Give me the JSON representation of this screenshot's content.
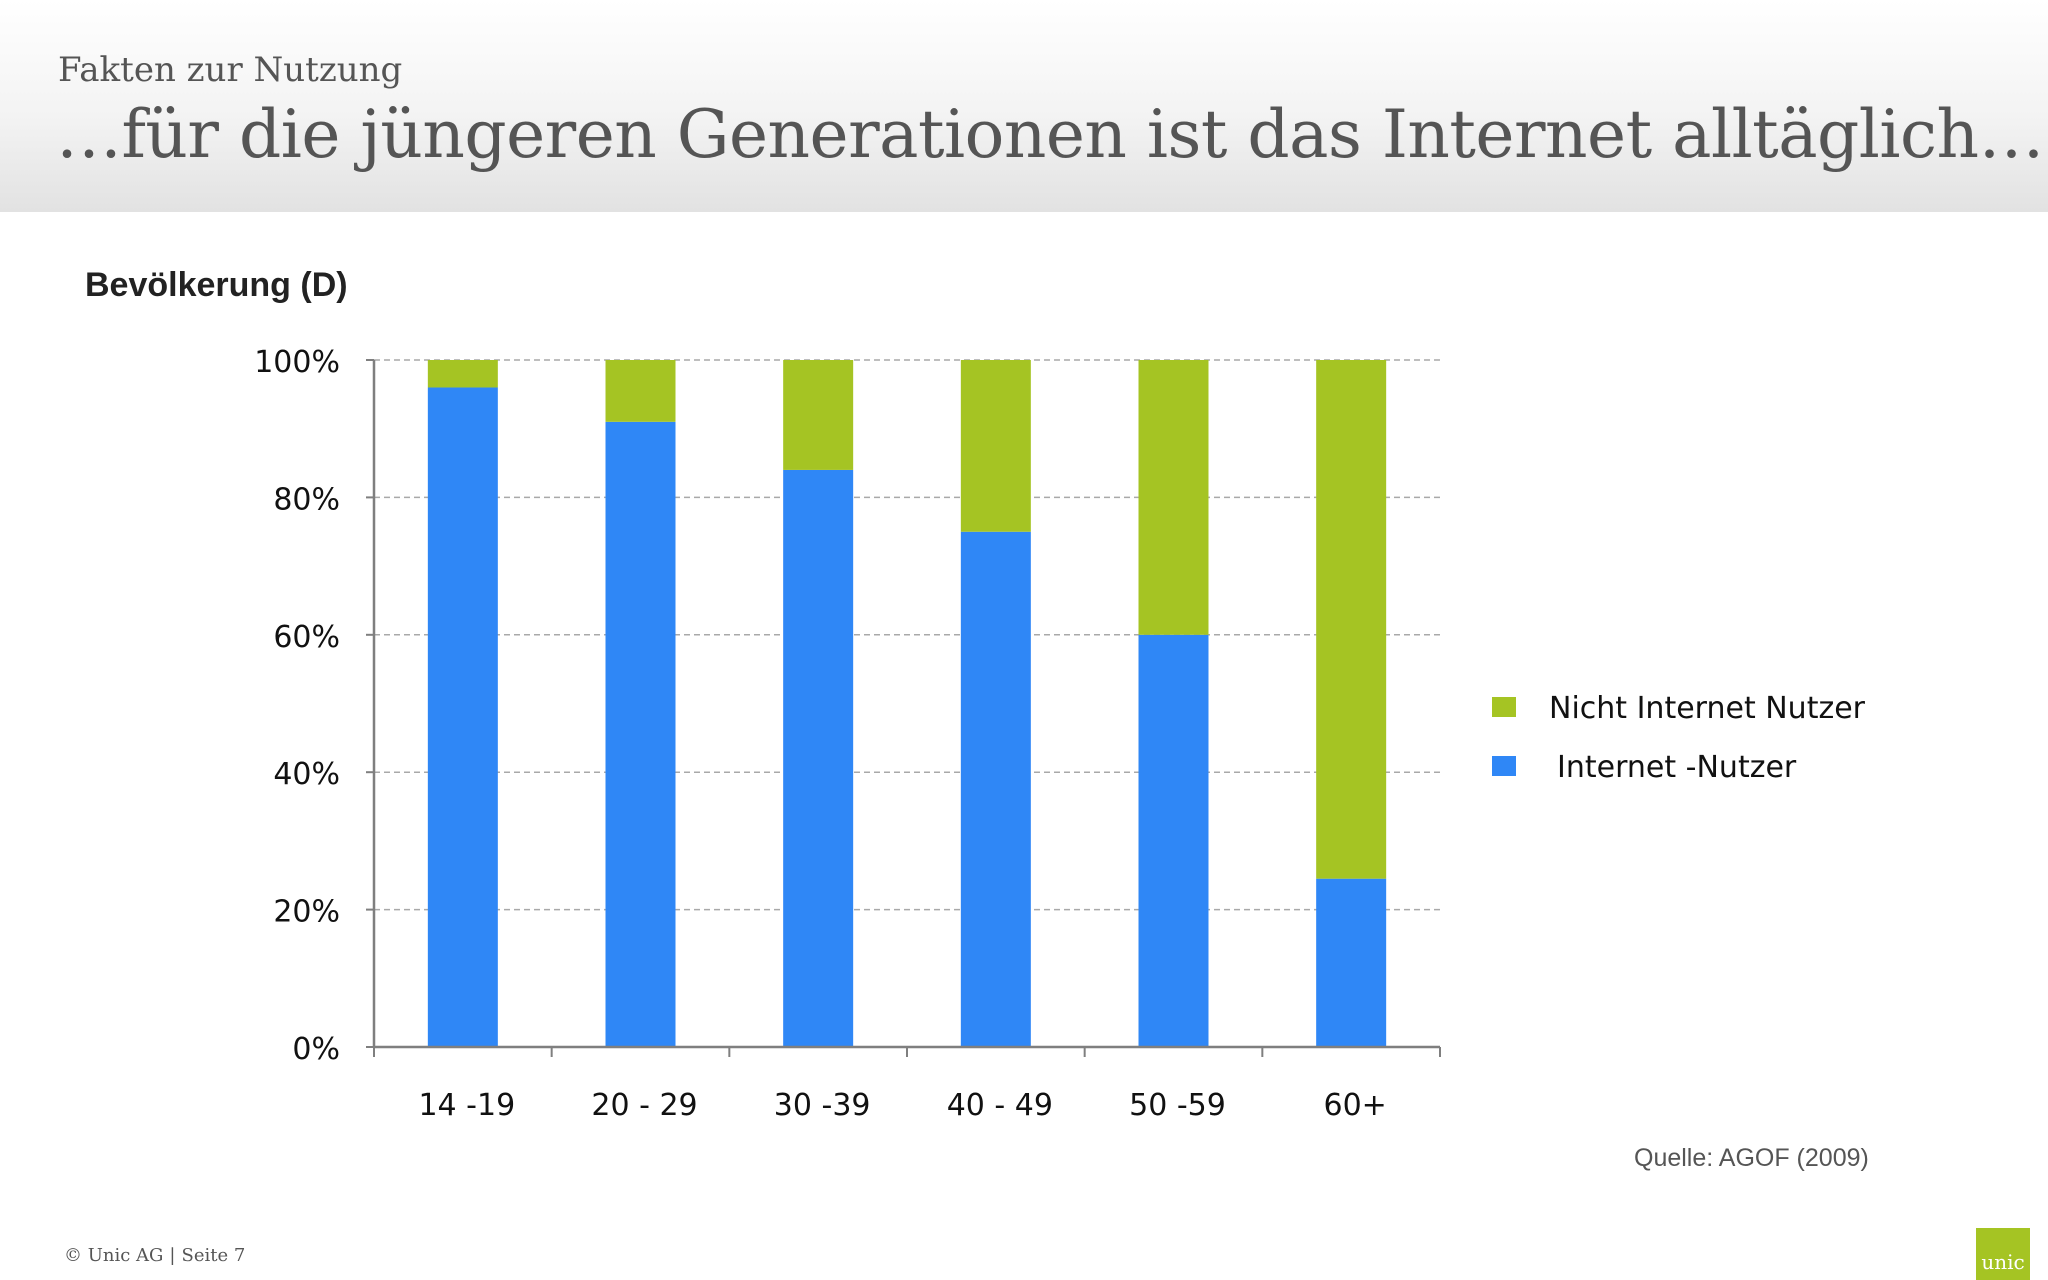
{
  "header": {
    "subtitle": "Fakten zur Nutzung",
    "title": "…für die jüngeren Generationen ist das Internet alltäglich…"
  },
  "chart_heading": "Bevölkerung (D)",
  "source": "Quelle: AGOF (2009)",
  "footer": {
    "copyright": "© Unic AG",
    "separator": "|",
    "page": "Seite 7"
  },
  "logo_text": "unic",
  "colors": {
    "internet_users": "#2f87f6",
    "non_users": "#a5c423",
    "grid": "#a9a9a9",
    "axis": "#7f7f7f"
  },
  "chart_data": {
    "type": "bar",
    "stacked": true,
    "categories": [
      "14 -19",
      "20  - 29",
      "30  -39",
      "40  - 49",
      "50 -59",
      "60+"
    ],
    "series": [
      {
        "name": "Internet -Nutzer",
        "values": [
          96,
          91,
          84,
          75,
          60,
          24.5
        ]
      },
      {
        "name": "Nicht Internet Nutzer",
        "values": [
          4,
          9,
          16,
          25,
          40,
          75.5
        ]
      }
    ],
    "y_ticks": [
      "0%",
      "20%",
      "40%",
      "60%",
      "80%",
      "100%"
    ],
    "ylim": [
      0,
      100
    ],
    "grid": true,
    "legend_position": "right"
  }
}
